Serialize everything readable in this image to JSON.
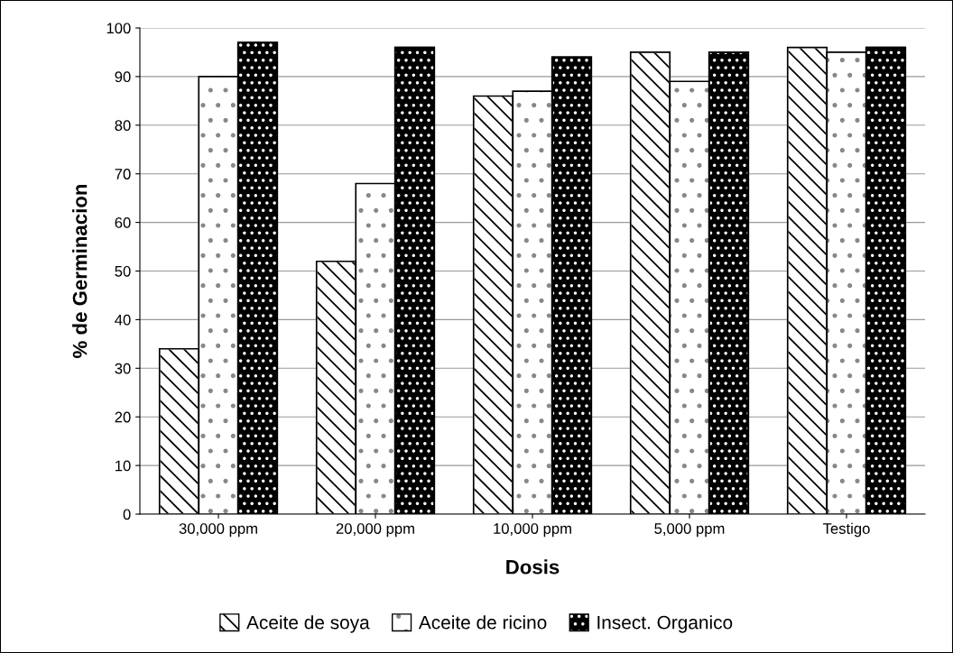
{
  "chart_data": {
    "type": "bar",
    "xlabel": "Dosis",
    "ylabel": "% de Germinacion",
    "categories": [
      "30,000 ppm",
      "20,000 ppm",
      "10,000 ppm",
      "5,000 ppm",
      "Testigo"
    ],
    "series": [
      {
        "name": "Aceite de soya",
        "color": "#ffffff",
        "values": [
          34,
          52,
          86,
          95,
          96
        ]
      },
      {
        "name": "Aceite de ricino",
        "color": "#ffffff",
        "values": [
          90,
          68,
          87,
          89,
          95
        ]
      },
      {
        "name": "Insect. Organico",
        "color": "#000000",
        "values": [
          97,
          96,
          94,
          95,
          96
        ]
      }
    ],
    "ylim": [
      0,
      100
    ],
    "yticks": [
      0,
      10,
      20,
      30,
      40,
      50,
      60,
      70,
      80,
      90,
      100
    ],
    "grid": "y",
    "legend": "bottom"
  }
}
